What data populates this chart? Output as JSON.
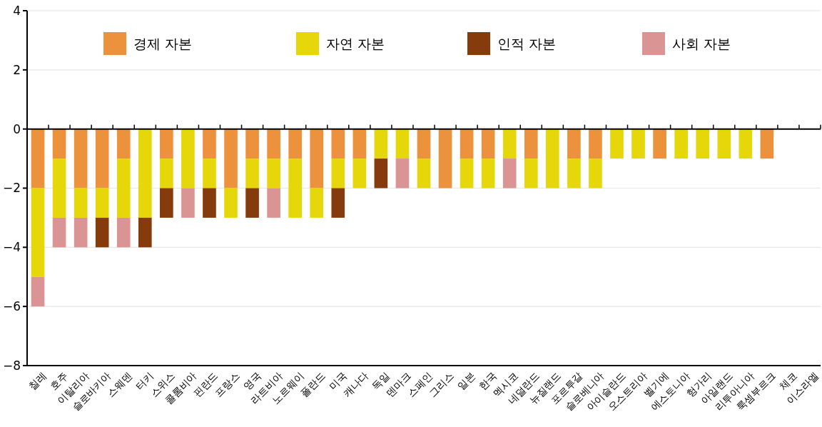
{
  "chart_data": {
    "type": "bar",
    "stacked": true,
    "categories": [
      "칠레",
      "호주",
      "이탈리아",
      "슬로바키아",
      "스웨덴",
      "터키",
      "스위스",
      "콜롬비아",
      "핀란드",
      "프랑스",
      "영국",
      "라트비아",
      "노르웨이",
      "폴란드",
      "미국",
      "캐나다",
      "독일",
      "덴마크",
      "스페인",
      "그리스",
      "일본",
      "한국",
      "멕시코",
      "네덜란드",
      "뉴질랜드",
      "포르투갈",
      "슬로베니아",
      "아이슬란드",
      "오스트리아",
      "벨기에",
      "에스토니아",
      "헝가리",
      "아일랜드",
      "리투아니아",
      "룩셈부르크",
      "체코",
      "이스라엘"
    ],
    "series": [
      {
        "name": "경제 자본",
        "color": "#ec923d",
        "values": [
          -2,
          -1,
          -2,
          -2,
          -1,
          0,
          -1,
          0,
          -1,
          -2,
          -1,
          -1,
          -1,
          -2,
          -1,
          -1,
          0,
          0,
          -1,
          -2,
          -1,
          -1,
          0,
          -1,
          0,
          -1,
          -1,
          0,
          0,
          -1,
          0,
          0,
          0,
          0,
          -1,
          0,
          0
        ]
      },
      {
        "name": "자연 자본",
        "color": "#e6d70a",
        "values": [
          -3,
          -2,
          -1,
          -1,
          -2,
          -3,
          -1,
          -2,
          -1,
          -1,
          -1,
          -1,
          -2,
          -1,
          -1,
          -1,
          -1,
          -1,
          -1,
          0,
          -1,
          -1,
          -1,
          -1,
          -2,
          -1,
          -1,
          -1,
          -1,
          0,
          -1,
          -1,
          -1,
          -1,
          0,
          0,
          0
        ]
      },
      {
        "name": "인적 자본",
        "color": "#853b0c",
        "values": [
          0,
          0,
          0,
          -1,
          0,
          -1,
          -1,
          0,
          -1,
          0,
          -1,
          0,
          0,
          0,
          -1,
          0,
          -1,
          0,
          0,
          0,
          0,
          0,
          0,
          0,
          0,
          0,
          0,
          0,
          0,
          0,
          0,
          0,
          0,
          0,
          0,
          0,
          0
        ]
      },
      {
        "name": "사회 자본",
        "color": "#da9494",
        "values": [
          -1,
          -1,
          -1,
          0,
          -1,
          0,
          0,
          -1,
          0,
          0,
          0,
          -1,
          0,
          0,
          0,
          0,
          0,
          -1,
          0,
          0,
          0,
          0,
          -1,
          0,
          0,
          0,
          0,
          0,
          0,
          0,
          0,
          0,
          0,
          0,
          0,
          0,
          0
        ]
      }
    ],
    "ylim": [
      -8,
      4
    ],
    "yticks": [
      -8,
      -6,
      -4,
      -2,
      0,
      2,
      4
    ],
    "grid": "y",
    "legend": "top"
  }
}
